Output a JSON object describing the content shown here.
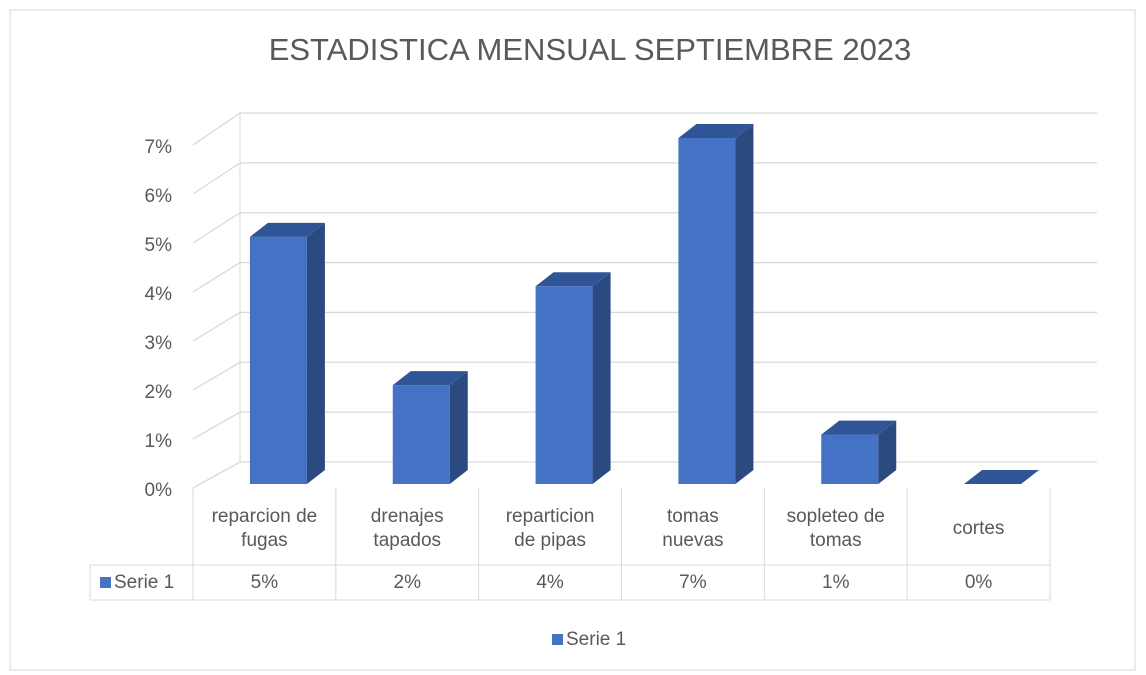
{
  "chart_data": {
    "type": "bar3d",
    "title": "ESTADISTICA MENSUAL SEPTIEMBRE 2023",
    "categories": [
      "reparcion de fugas",
      "drenajes tapados",
      "reparticion de pipas",
      "tomas nuevas",
      "sopleteo de tomas",
      "cortes"
    ],
    "series": [
      {
        "name": "Serie 1",
        "color": "#4472c4",
        "values": [
          5,
          2,
          4,
          7,
          1,
          0
        ],
        "value_labels": [
          "5%",
          "2%",
          "4%",
          "7%",
          "1%",
          "0%"
        ]
      }
    ],
    "ylim": [
      0,
      7
    ],
    "yticks": [
      {
        "value": 0,
        "label": "0%"
      },
      {
        "value": 1,
        "label": "1%"
      },
      {
        "value": 2,
        "label": "2%"
      },
      {
        "value": 3,
        "label": "3%"
      },
      {
        "value": 4,
        "label": "4%"
      },
      {
        "value": 5,
        "label": "5%"
      },
      {
        "value": 6,
        "label": "6%"
      },
      {
        "value": 7,
        "label": "7%"
      }
    ],
    "grid": true,
    "legend": "bottom"
  }
}
